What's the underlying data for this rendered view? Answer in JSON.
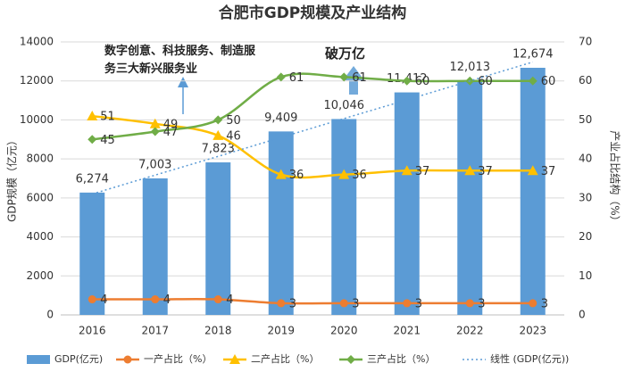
{
  "chart_data": {
    "type": "bar",
    "title": "合肥市GDP规模及产业结构",
    "categories": [
      "2016",
      "2017",
      "2018",
      "2019",
      "2020",
      "2021",
      "2022",
      "2023"
    ],
    "series": [
      {
        "name": "GDP(亿元)",
        "type": "bar",
        "color": "#5b9bd5",
        "values": [
          6274,
          7003,
          7823,
          9409,
          10046,
          11412,
          12013,
          12674
        ],
        "value_labels": [
          "6,274",
          "7,003",
          "7,823",
          "9,409",
          "10,046",
          "11,412",
          "12,013",
          "12,674"
        ]
      },
      {
        "name": "一产占比（%）",
        "type": "line",
        "axis": "y2",
        "color": "#ed7d31",
        "marker": "circle",
        "values": [
          4,
          4,
          4,
          3,
          3,
          3,
          3,
          3
        ]
      },
      {
        "name": "二产占比（%）",
        "type": "line",
        "axis": "y2",
        "color": "#ffc000",
        "marker": "triangle",
        "values": [
          51,
          49,
          46,
          36,
          36,
          37,
          37,
          37
        ]
      },
      {
        "name": "三产占比（%）",
        "type": "line",
        "axis": "y2",
        "color": "#70ad47",
        "marker": "diamond",
        "values": [
          45,
          47,
          50,
          61,
          61,
          60,
          60,
          60
        ]
      },
      {
        "name": "线性 (GDP(亿元))",
        "type": "line",
        "style": "dotted",
        "color": "#5b9bd5",
        "values": [
          6200,
          7170,
          8130,
          9100,
          10070,
          11030,
          12000,
          12970
        ]
      }
    ],
    "y_label": "GDP规模（亿元）",
    "y2_label": "产业占比结构（%）",
    "ylim": [
      0,
      14000
    ],
    "yticks": [
      0,
      2000,
      4000,
      6000,
      8000,
      10000,
      12000,
      14000
    ],
    "y2lim": [
      0,
      70
    ],
    "y2ticks": [
      0,
      10,
      20,
      30,
      40,
      50,
      60,
      70
    ],
    "grid": true,
    "legend": "bottom",
    "annotations": [
      "数字创意、科技服务、制造服务三大新兴服务业",
      "破万亿"
    ]
  }
}
